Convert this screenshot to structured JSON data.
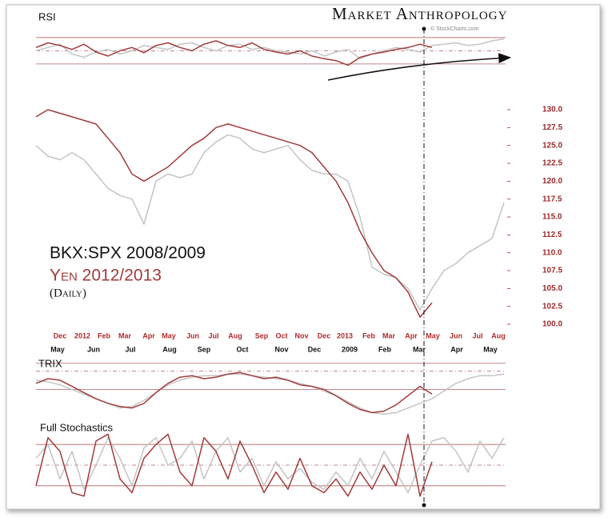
{
  "header": {
    "brand": "Market Anthropology",
    "credit": "© StockCharts.com"
  },
  "chart_data": [
    {
      "type": "line",
      "subtitle": "(Daily)",
      "ylim": [
        99.5,
        131.5
      ],
      "yticks": [
        {
          "value": 100,
          "label": "100.0"
        },
        {
          "value": 102.5,
          "label": "102.5"
        },
        {
          "value": 105,
          "label": "105.0"
        },
        {
          "value": 107.5,
          "label": "107.5"
        },
        {
          "value": 110,
          "label": "110.0"
        },
        {
          "value": 112.5,
          "label": "112.5"
        },
        {
          "value": 115,
          "label": "115.0"
        },
        {
          "value": 117.5,
          "label": "117.5"
        },
        {
          "value": 120,
          "label": "120.0"
        },
        {
          "value": 122.5,
          "label": "122.5"
        },
        {
          "value": 125,
          "label": "125.0"
        },
        {
          "value": 127.5,
          "label": "127.5"
        },
        {
          "value": 130,
          "label": "130.0"
        }
      ],
      "x_labels_top": [
        "Dec",
        "2012",
        "Feb",
        "Mar",
        "Apr",
        "May",
        "Jun",
        "Jul",
        "Aug",
        "Sep",
        "Oct",
        "Nov",
        "Dec",
        "2013",
        "Feb",
        "Mar",
        "Apr",
        "May",
        "Jun",
        "Jul",
        "Aug"
      ],
      "x_labels_bottom": [
        "May",
        "Jun",
        "Jul",
        "Aug",
        "Sep",
        "Oct",
        "Nov",
        "Dec",
        "2009",
        "Feb",
        "Mar",
        "Apr",
        "May"
      ],
      "series": [
        {
          "name": "BKX:SPX 2008/2009",
          "color": "#c4c4c4",
          "values": [
            125,
            123.5,
            123,
            124,
            123,
            121,
            119,
            118,
            117.5,
            114,
            120,
            121,
            120.5,
            121,
            124,
            125.5,
            126.5,
            126,
            124.5,
            124,
            124.5,
            125,
            123,
            121.5,
            121,
            121,
            120,
            115,
            108,
            107,
            106.5,
            105,
            102,
            105,
            107.5,
            108.5,
            110,
            111,
            112,
            117
          ]
        },
        {
          "name": "Yen 2012/2013",
          "color": "#a23b3b",
          "values": [
            129,
            130,
            129.5,
            129,
            128.5,
            128,
            126,
            124,
            121,
            120,
            121,
            122,
            123.5,
            125,
            126,
            127.5,
            128,
            127.5,
            127,
            126.5,
            126,
            125.5,
            125,
            124,
            122,
            120,
            117,
            113,
            110,
            107.5,
            106.5,
            104.5,
            101,
            103,
            null,
            null,
            null,
            null,
            null,
            null
          ]
        }
      ]
    },
    {
      "type": "line",
      "title": "RSI",
      "ylim": [
        14,
        76
      ],
      "reference_lines": [
        70,
        50,
        30
      ],
      "series": [
        {
          "color": "#c4c4c4",
          "values": [
            50,
            55,
            60,
            45,
            40,
            48,
            52,
            45,
            50,
            58,
            55,
            52,
            60,
            62,
            55,
            50,
            58,
            60,
            52,
            55,
            50,
            48,
            45,
            50,
            42,
            48,
            52,
            38,
            45,
            50,
            55,
            52,
            48,
            58,
            60,
            62,
            58,
            60,
            65,
            68
          ]
        },
        {
          "color": "#a23b3b",
          "values": [
            55,
            62,
            58,
            52,
            60,
            48,
            42,
            50,
            55,
            47,
            58,
            62,
            55,
            50,
            60,
            65,
            58,
            55,
            62,
            52,
            48,
            45,
            50,
            42,
            38,
            35,
            28,
            40,
            45,
            48,
            52,
            55,
            60,
            55,
            null,
            null,
            null,
            null,
            null,
            null
          ]
        }
      ]
    },
    {
      "type": "line",
      "title": "TRIX",
      "ylim": [
        -1,
        1
      ],
      "reference_lines": [
        0.85,
        0.6,
        0
      ],
      "series": [
        {
          "color": "#c4c4c4",
          "values": [
            0.3,
            0.25,
            0.15,
            0,
            -0.15,
            -0.3,
            -0.45,
            -0.6,
            -0.55,
            -0.35,
            -0.1,
            0.15,
            0.3,
            0.4,
            0.45,
            0.45,
            0.5,
            0.5,
            0.45,
            0.4,
            0.35,
            0.3,
            0.2,
            0.1,
            -0.05,
            -0.2,
            -0.4,
            -0.6,
            -0.75,
            -0.8,
            -0.75,
            -0.6,
            -0.45,
            -0.3,
            -0.05,
            0.2,
            0.35,
            0.45,
            0.45,
            0.5
          ]
        },
        {
          "color": "#a23b3b",
          "values": [
            0.2,
            0.35,
            0.3,
            0.1,
            -0.1,
            -0.3,
            -0.45,
            -0.55,
            -0.6,
            -0.45,
            -0.1,
            0.2,
            0.4,
            0.45,
            0.35,
            0.4,
            0.5,
            0.55,
            0.45,
            0.35,
            0.4,
            0.3,
            0.15,
            0.1,
            0,
            -0.2,
            -0.45,
            -0.65,
            -0.75,
            -0.7,
            -0.5,
            -0.2,
            0.1,
            -0.15,
            null,
            null,
            null,
            null,
            null,
            null
          ]
        }
      ]
    },
    {
      "type": "line",
      "title": "Full Stochastics",
      "ylim": [
        0,
        100
      ],
      "reference_lines": [
        80,
        50,
        20
      ],
      "series": [
        {
          "color": "#c4c4c4",
          "values": [
            60,
            80,
            30,
            70,
            15,
            50,
            90,
            60,
            20,
            75,
            90,
            50,
            60,
            85,
            30,
            70,
            90,
            40,
            60,
            20,
            55,
            30,
            45,
            25,
            15,
            40,
            20,
            60,
            30,
            70,
            40,
            10,
            50,
            85,
            90,
            70,
            40,
            85,
            60,
            90
          ]
        },
        {
          "color": "#a23b3b",
          "values": [
            20,
            90,
            70,
            10,
            5,
            85,
            95,
            30,
            10,
            60,
            80,
            95,
            40,
            20,
            90,
            70,
            30,
            85,
            50,
            10,
            40,
            15,
            60,
            20,
            10,
            30,
            5,
            40,
            15,
            50,
            20,
            95,
            5,
            55,
            null,
            null,
            null,
            null,
            null,
            null
          ]
        }
      ]
    }
  ]
}
